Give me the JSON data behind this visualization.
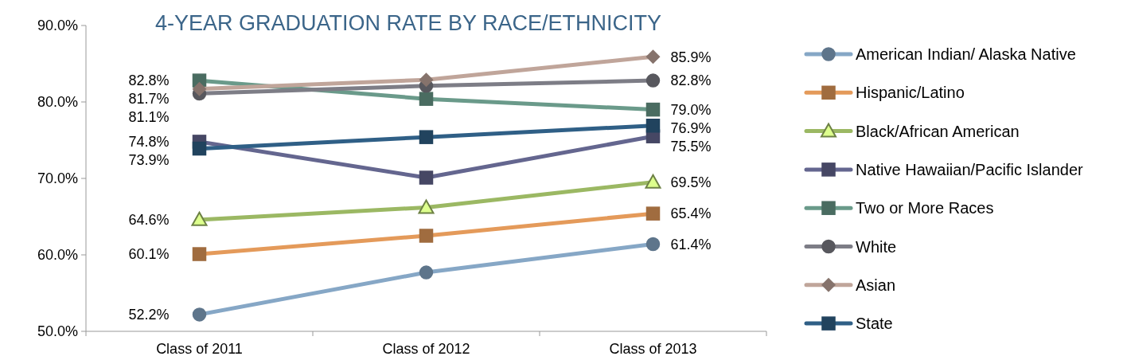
{
  "chart_data": {
    "type": "line",
    "title": "4-YEAR GRADUATION RATE BY RACE/ETHNICITY",
    "categories": [
      "Class of 2011",
      "Class of 2012",
      "Class of 2013"
    ],
    "ylim": [
      50,
      90
    ],
    "yticks": [
      {
        "value": 50,
        "label": "50.0%"
      },
      {
        "value": 60,
        "label": "60.0%"
      },
      {
        "value": 70,
        "label": "70.0%"
      },
      {
        "value": 80,
        "label": "80.0%"
      },
      {
        "value": 90,
        "label": "90.0%"
      }
    ],
    "grid": false,
    "legend": "right",
    "series": [
      {
        "name": "American Indian/ Alaska Native",
        "color": "#86a7c6",
        "marker": "circle",
        "values": [
          52.2,
          57.7,
          61.4
        ],
        "value_labels": [
          "52.2%",
          null,
          "61.4%"
        ]
      },
      {
        "name": "Hispanic/Latino",
        "color": "#e49a5a",
        "marker": "square",
        "values": [
          60.1,
          62.5,
          65.4
        ],
        "value_labels": [
          "60.1%",
          null,
          "65.4%"
        ]
      },
      {
        "name": "Black/African American",
        "color": "#9bb863",
        "marker": "triangle",
        "values": [
          64.6,
          66.2,
          69.5
        ],
        "value_labels": [
          "64.6%",
          null,
          "69.5%"
        ]
      },
      {
        "name": "Native Hawaiian/Pacific Islander",
        "color": "#64668f",
        "marker": "square",
        "values": [
          74.8,
          70.1,
          75.5
        ],
        "value_labels": [
          "74.8%",
          null,
          "75.5%"
        ]
      },
      {
        "name": "Two or More Races",
        "color": "#6a9a8a",
        "marker": "square",
        "values": [
          82.8,
          80.4,
          79.0
        ],
        "value_labels": [
          "82.8%",
          null,
          "79.0%"
        ]
      },
      {
        "name": "White",
        "color": "#7d7d86",
        "marker": "circle",
        "values": [
          81.1,
          82.1,
          82.8
        ],
        "value_labels": [
          "81.1%",
          null,
          "82.8%"
        ]
      },
      {
        "name": "Asian",
        "color": "#c0a59a",
        "marker": "diamond",
        "values": [
          81.7,
          82.9,
          85.9
        ],
        "value_labels": [
          "81.7%",
          null,
          "85.9%"
        ]
      },
      {
        "name": "State",
        "color": "#2f5f86",
        "marker": "square",
        "values": [
          73.9,
          75.4,
          76.9
        ],
        "value_labels": [
          "73.9%",
          null,
          "76.9%"
        ]
      }
    ]
  }
}
